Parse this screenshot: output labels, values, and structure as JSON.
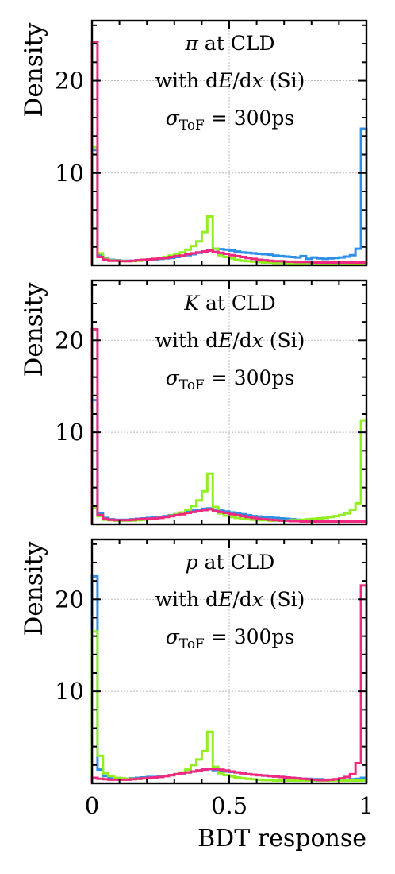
{
  "chart_data": [
    {
      "type": "histogram",
      "ylabel": "Density",
      "annotation": {
        "particle": "π",
        "line1_suffix": " at CLD",
        "line2_prefix": "with d",
        "line2_E": "E",
        "line2_mid": "/d",
        "line2_x": "x",
        "line2_suffix": " (Si)",
        "line3_sigma": "σ",
        "line3_sub": "ToF",
        "line3_rest": " = 300ps"
      },
      "xlim": [
        0,
        1
      ],
      "ylim": [
        0,
        26.5
      ],
      "yticks": [
        "10",
        "20"
      ],
      "ytick_values": [
        10,
        20
      ],
      "bin_width": 0.02,
      "grid": true,
      "series": [
        {
          "color": "#2e8fe8",
          "values": [
            12.5,
            1.1,
            0.8,
            0.6,
            0.55,
            0.5,
            0.5,
            0.5,
            0.55,
            0.6,
            0.6,
            0.65,
            0.7,
            0.75,
            0.8,
            0.9,
            1.0,
            1.1,
            1.2,
            1.35,
            1.5,
            1.6,
            1.8,
            1.75,
            1.7,
            1.6,
            1.5,
            1.4,
            1.35,
            1.3,
            1.25,
            1.2,
            1.15,
            1.05,
            1.0,
            0.95,
            0.9,
            0.85,
            1.0,
            0.7,
            0.85,
            0.75,
            0.7,
            0.75,
            0.8,
            0.85,
            0.95,
            1.1,
            1.8,
            14.8
          ]
        },
        {
          "color": "#8fef1f",
          "values": [
            12.8,
            1.3,
            0.7,
            0.55,
            0.5,
            0.5,
            0.45,
            0.45,
            0.5,
            0.55,
            0.6,
            0.7,
            0.8,
            0.9,
            1.05,
            1.2,
            1.4,
            1.7,
            2.1,
            2.6,
            3.6,
            5.3,
            1.8,
            1.1,
            0.9,
            0.75,
            0.6,
            0.5,
            0.45,
            0.4,
            0.35,
            0.3,
            0.3,
            0.25,
            0.25,
            0.2,
            0.2,
            0.2,
            0.2,
            0.2,
            0.2,
            0.2,
            0.2,
            0.2,
            0.2,
            0.2,
            0.2,
            0.2,
            0.2,
            0.2
          ]
        },
        {
          "color": "#f0287f",
          "values": [
            24.2,
            0.9,
            0.6,
            0.5,
            0.5,
            0.45,
            0.45,
            0.5,
            0.55,
            0.6,
            0.65,
            0.7,
            0.75,
            0.8,
            0.9,
            1.0,
            1.05,
            1.2,
            1.3,
            1.4,
            1.5,
            1.6,
            1.45,
            1.35,
            1.25,
            1.1,
            1.0,
            0.9,
            0.8,
            0.7,
            0.6,
            0.55,
            0.5,
            0.45,
            0.45,
            0.4,
            0.4,
            0.35,
            0.35,
            0.35,
            0.3,
            0.3,
            0.3,
            0.3,
            0.3,
            0.3,
            0.3,
            0.3,
            0.3,
            0.3
          ]
        }
      ]
    },
    {
      "type": "histogram",
      "ylabel": "Density",
      "annotation": {
        "particle": "K",
        "line1_suffix": " at CLD",
        "line2_prefix": "with d",
        "line2_E": "E",
        "line2_mid": "/d",
        "line2_x": "x",
        "line2_suffix": " (Si)",
        "line3_sigma": "σ",
        "line3_sub": "ToF",
        "line3_rest": " = 300ps"
      },
      "xlim": [
        0,
        1
      ],
      "ylim": [
        0,
        26.5
      ],
      "yticks": [
        "10",
        "20"
      ],
      "ytick_values": [
        10,
        20
      ],
      "bin_width": 0.02,
      "grid": true,
      "series": [
        {
          "color": "#2e8fe8",
          "values": [
            13.5,
            1.2,
            0.7,
            0.55,
            0.5,
            0.5,
            0.5,
            0.55,
            0.6,
            0.65,
            0.7,
            0.75,
            0.8,
            0.9,
            1.0,
            1.1,
            1.2,
            1.35,
            1.5,
            1.6,
            1.7,
            1.75,
            1.6,
            1.5,
            1.4,
            1.3,
            1.2,
            1.1,
            1.0,
            0.9,
            0.85,
            0.8,
            0.75,
            0.7,
            0.65,
            0.6,
            0.55,
            0.5,
            0.45,
            0.45,
            0.4,
            0.4,
            0.4,
            0.35,
            0.35,
            0.35,
            0.35,
            0.35,
            0.35,
            0.35
          ]
        },
        {
          "color": "#8fef1f",
          "values": [
            1.8,
            0.9,
            0.5,
            0.45,
            0.4,
            0.4,
            0.4,
            0.4,
            0.45,
            0.5,
            0.55,
            0.6,
            0.7,
            0.8,
            0.95,
            1.1,
            1.3,
            1.6,
            2.0,
            2.6,
            3.6,
            5.5,
            1.9,
            1.2,
            0.95,
            0.8,
            0.7,
            0.6,
            0.55,
            0.5,
            0.45,
            0.45,
            0.4,
            0.4,
            0.4,
            0.4,
            0.45,
            0.45,
            0.5,
            0.55,
            0.6,
            0.65,
            0.7,
            0.8,
            0.9,
            1.0,
            1.2,
            1.6,
            2.3,
            11.3
          ]
        },
        {
          "color": "#f0287f",
          "values": [
            21.2,
            1.0,
            0.6,
            0.5,
            0.45,
            0.45,
            0.45,
            0.5,
            0.55,
            0.6,
            0.6,
            0.65,
            0.7,
            0.8,
            0.9,
            1.0,
            1.1,
            1.25,
            1.35,
            1.45,
            1.55,
            1.65,
            1.45,
            1.35,
            1.25,
            1.1,
            1.0,
            0.9,
            0.8,
            0.7,
            0.6,
            0.55,
            0.5,
            0.45,
            0.4,
            0.4,
            0.35,
            0.35,
            0.3,
            0.3,
            0.3,
            0.3,
            0.3,
            0.3,
            0.3,
            0.3,
            0.3,
            0.3,
            0.3,
            0.3
          ]
        }
      ]
    },
    {
      "type": "histogram",
      "ylabel": "Density",
      "xlabel": "BDT response",
      "xticks": [
        "0",
        "0.5",
        "1"
      ],
      "xtick_values": [
        0,
        0.5,
        1
      ],
      "annotation": {
        "particle": "p",
        "line1_suffix": " at CLD",
        "line2_prefix": "with d",
        "line2_E": "E",
        "line2_mid": "/d",
        "line2_x": "x",
        "line2_suffix": " (Si)",
        "line3_sigma": "σ",
        "line3_sub": "ToF",
        "line3_rest": " = 300ps"
      },
      "xlim": [
        0,
        1
      ],
      "ylim": [
        0,
        26.5
      ],
      "yticks": [
        "10",
        "20"
      ],
      "ytick_values": [
        10,
        20
      ],
      "bin_width": 0.02,
      "grid": true,
      "series": [
        {
          "color": "#2e8fe8",
          "values": [
            22.5,
            1.5,
            0.8,
            0.6,
            0.55,
            0.5,
            0.5,
            0.55,
            0.6,
            0.65,
            0.7,
            0.7,
            0.75,
            0.8,
            0.9,
            1.0,
            1.1,
            1.2,
            1.3,
            1.4,
            1.5,
            1.55,
            1.45,
            1.35,
            1.3,
            1.25,
            1.2,
            1.1,
            1.0,
            0.95,
            0.9,
            0.85,
            0.8,
            0.75,
            0.7,
            0.65,
            0.6,
            0.55,
            0.5,
            0.5,
            0.45,
            0.45,
            0.4,
            0.4,
            0.4,
            0.4,
            0.4,
            0.45,
            0.5,
            0.6
          ]
        },
        {
          "color": "#8fef1f",
          "values": [
            16.5,
            3.0,
            1.1,
            0.8,
            0.6,
            0.55,
            0.5,
            0.5,
            0.5,
            0.55,
            0.6,
            0.65,
            0.7,
            0.8,
            0.9,
            1.0,
            1.2,
            1.5,
            2.0,
            2.6,
            3.5,
            5.6,
            1.8,
            1.1,
            0.9,
            0.75,
            0.65,
            0.55,
            0.5,
            0.45,
            0.4,
            0.35,
            0.35,
            0.3,
            0.3,
            0.3,
            0.3,
            0.3,
            0.3,
            0.3,
            0.3,
            0.3,
            0.3,
            0.3,
            0.3,
            0.3,
            0.3,
            0.3,
            0.3,
            0.3
          ]
        },
        {
          "color": "#f0287f",
          "values": [
            0.6,
            0.5,
            0.45,
            0.4,
            0.4,
            0.4,
            0.4,
            0.45,
            0.5,
            0.55,
            0.6,
            0.65,
            0.7,
            0.8,
            0.9,
            1.0,
            1.1,
            1.2,
            1.3,
            1.4,
            1.5,
            1.6,
            1.55,
            1.5,
            1.4,
            1.3,
            1.2,
            1.1,
            1.0,
            0.95,
            0.9,
            0.85,
            0.8,
            0.75,
            0.7,
            0.65,
            0.6,
            0.55,
            0.5,
            0.45,
            0.4,
            0.35,
            0.35,
            0.4,
            0.45,
            0.55,
            0.7,
            1.0,
            2.2,
            21.5
          ]
        }
      ]
    }
  ]
}
